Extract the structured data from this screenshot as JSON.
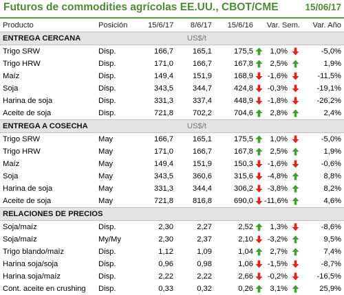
{
  "header": {
    "title": "Futuros de commodities agrícolas EE.UU., CBOT/CME",
    "date": "15/06/17"
  },
  "columns": [
    "Producto",
    "Posición",
    "15/6/17",
    "8/6/17",
    "15/6/16",
    "Var. Sem.",
    "Var. Año"
  ],
  "colors": {
    "up": "#3fa12e",
    "down": "#e0241a",
    "accent": "#4e8a33"
  },
  "sections": [
    {
      "name": "ENTREGA CERCANA",
      "unit": "US$/t",
      "rows": [
        {
          "product": "Trigo SRW",
          "pos": "Disp.",
          "v1": "166,7",
          "v2": "165,1",
          "v3": "175,5",
          "a1": "up",
          "ws": "1,0%",
          "a2": "down",
          "ya": "-5,0%"
        },
        {
          "product": "Trigo HRW",
          "pos": "Disp.",
          "v1": "171,0",
          "v2": "166,7",
          "v3": "167,8",
          "a1": "up",
          "ws": "2,5%",
          "a2": "up",
          "ya": "1,9%"
        },
        {
          "product": "Maíz",
          "pos": "Disp.",
          "v1": "149,4",
          "v2": "151,9",
          "v3": "168,9",
          "a1": "down",
          "ws": "-1,6%",
          "a2": "down",
          "ya": "-11,5%"
        },
        {
          "product": "Soja",
          "pos": "Disp.",
          "v1": "343,5",
          "v2": "344,7",
          "v3": "424,8",
          "a1": "down",
          "ws": "-0,3%",
          "a2": "down",
          "ya": "-19,1%"
        },
        {
          "product": "Harina de soja",
          "pos": "Disp.",
          "v1": "331,3",
          "v2": "337,4",
          "v3": "448,9",
          "a1": "down",
          "ws": "-1,8%",
          "a2": "down",
          "ya": "-26,2%"
        },
        {
          "product": "Aceite de soja",
          "pos": "Disp.",
          "v1": "721,8",
          "v2": "702,2",
          "v3": "704,6",
          "a1": "up",
          "ws": "2,8%",
          "a2": "up",
          "ya": "2,4%"
        }
      ]
    },
    {
      "name": "ENTREGA A COSECHA",
      "unit": "US$/t",
      "rows": [
        {
          "product": "Trigo SRW",
          "pos": "May",
          "v1": "166,7",
          "v2": "165,1",
          "v3": "175,5",
          "a1": "up",
          "ws": "1,0%",
          "a2": "down",
          "ya": "-5,0%"
        },
        {
          "product": "Trigo HRW",
          "pos": "May",
          "v1": "171,0",
          "v2": "166,7",
          "v3": "167,8",
          "a1": "up",
          "ws": "2,5%",
          "a2": "up",
          "ya": "1,9%"
        },
        {
          "product": "Maíz",
          "pos": "May",
          "v1": "149,4",
          "v2": "151,9",
          "v3": "150,3",
          "a1": "down",
          "ws": "-1,6%",
          "a2": "down",
          "ya": "-0,6%"
        },
        {
          "product": "Soja",
          "pos": "May",
          "v1": "343,5",
          "v2": "360,6",
          "v3": "315,6",
          "a1": "down",
          "ws": "-4,8%",
          "a2": "up",
          "ya": "8,8%"
        },
        {
          "product": "Harina de soja",
          "pos": "May",
          "v1": "331,3",
          "v2": "344,4",
          "v3": "306,2",
          "a1": "down",
          "ws": "-3,8%",
          "a2": "up",
          "ya": "8,2%"
        },
        {
          "product": "Aceite de soja",
          "pos": "May",
          "v1": "721,8",
          "v2": "816,8",
          "v3": "690,0",
          "a1": "down",
          "ws": "-11,6%",
          "a2": "up",
          "ya": "4,6%"
        }
      ]
    },
    {
      "name": "RELACIONES DE PRECIOS",
      "unit": "",
      "rows": [
        {
          "product": "Soja/maíz",
          "pos": "Disp.",
          "v1": "2,30",
          "v2": "2,27",
          "v3": "2,52",
          "a1": "up",
          "ws": "1,3%",
          "a2": "down",
          "ya": "-8,6%"
        },
        {
          "product": "Soja/maíz",
          "pos": "My/My",
          "v1": "2,30",
          "v2": "2,37",
          "v3": "2,10",
          "a1": "down",
          "ws": "-3,2%",
          "a2": "up",
          "ya": "9,5%"
        },
        {
          "product": "Trigo blando/maíz",
          "pos": "Disp.",
          "v1": "1,12",
          "v2": "1,09",
          "v3": "1,04",
          "a1": "up",
          "ws": "2,7%",
          "a2": "up",
          "ya": "7,4%"
        },
        {
          "product": "Harina soja/soja",
          "pos": "Disp.",
          "v1": "0,96",
          "v2": "0,98",
          "v3": "1,06",
          "a1": "down",
          "ws": "-1,5%",
          "a2": "down",
          "ya": "-8,7%"
        },
        {
          "product": "Harina soja/maíz",
          "pos": "Disp.",
          "v1": "2,22",
          "v2": "2,22",
          "v3": "2,66",
          "a1": "down",
          "ws": "-0,2%",
          "a2": "down",
          "ya": "-16,5%"
        },
        {
          "product": "Cont. aceite en crushing",
          "pos": "Disp.",
          "v1": "0,33",
          "v2": "0,32",
          "v3": "0,26",
          "a1": "up",
          "ws": "3,1%",
          "a2": "up",
          "ya": "25,9%"
        }
      ]
    }
  ]
}
